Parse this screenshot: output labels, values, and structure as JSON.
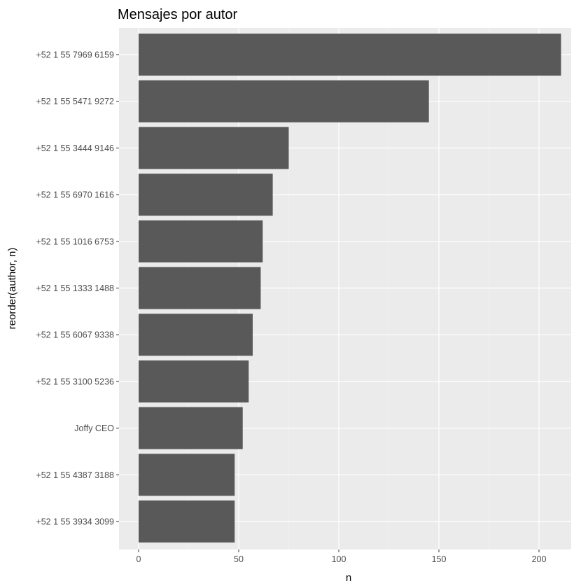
{
  "chart_data": {
    "type": "bar",
    "orientation": "horizontal",
    "title": "Mensajes por autor",
    "xlabel": "n",
    "ylabel": "reorder(author, n)",
    "categories": [
      "+52 1 55 7969 6159",
      "+52 1 55 5471 9272",
      "+52 1 55 3444 9146",
      "+52 1 55 6970 1616",
      "+52 1 55 1016 6753",
      "+52 1 55 1333 1488",
      "+52 1 55 6067 9338",
      "+52 1 55 3100 5236",
      "Joffy CEO",
      "+52 1 55 4387 3188",
      "+52 1 55 3934 3099"
    ],
    "values": [
      211,
      145,
      75,
      67,
      62,
      61,
      57,
      55,
      52,
      48,
      48
    ],
    "xticks": [
      0,
      50,
      100,
      150,
      200
    ],
    "xlim": [
      -10.55,
      221.55
    ],
    "grid": true,
    "bar_color": "#595959",
    "panel_color": "#ebebeb"
  }
}
